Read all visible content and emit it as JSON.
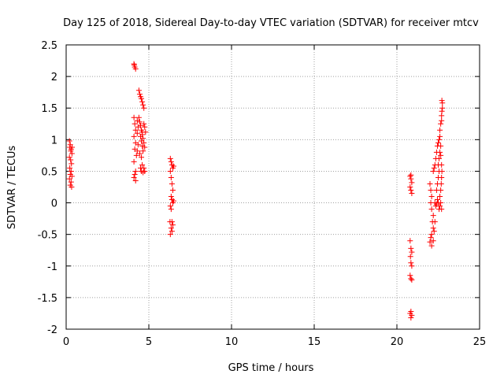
{
  "chart_data": {
    "type": "scatter",
    "title": "Day 125 of 2018, Sidereal Day-to-day VTEC variation (SDTVAR) for receiver mtcv",
    "xlabel": "GPS time / hours",
    "ylabel": "SDTVAR / TECUs",
    "xlim": [
      0,
      25
    ],
    "ylim": [
      -2,
      2.5
    ],
    "xticks": [
      0,
      5,
      10,
      15,
      20,
      25
    ],
    "xtick_labels": [
      "0",
      "5",
      "10",
      "15",
      "20",
      "25"
    ],
    "yticks": [
      -2,
      -1.5,
      -1,
      -0.5,
      0,
      0.5,
      1,
      1.5,
      2,
      2.5
    ],
    "ytick_labels": [
      "-2",
      "-1.5",
      "-1",
      "-0.5",
      "0",
      "0.5",
      "1",
      "1.5",
      "2",
      "2.5"
    ],
    "grid": true,
    "marker": "+",
    "color": "#ff0000",
    "series": [
      {
        "name": "SDTVAR",
        "points": [
          [
            0.2,
            0.98
          ],
          [
            0.25,
            0.92
          ],
          [
            0.3,
            0.85
          ],
          [
            0.35,
            0.78
          ],
          [
            0.2,
            0.72
          ],
          [
            0.28,
            0.82
          ],
          [
            0.32,
            0.62
          ],
          [
            0.22,
            0.55
          ],
          [
            0.3,
            0.5
          ],
          [
            0.25,
            0.45
          ],
          [
            0.35,
            0.42
          ],
          [
            0.2,
            0.38
          ],
          [
            0.3,
            0.33
          ],
          [
            0.25,
            0.28
          ],
          [
            0.33,
            0.25
          ],
          [
            0.22,
            0.88
          ],
          [
            0.36,
            0.88
          ],
          [
            0.27,
            0.68
          ],
          [
            4.1,
            2.2
          ],
          [
            4.15,
            2.15
          ],
          [
            4.2,
            2.12
          ],
          [
            4.12,
            2.18
          ],
          [
            4.1,
            1.35
          ],
          [
            4.15,
            1.25
          ],
          [
            4.2,
            1.15
          ],
          [
            4.1,
            1.05
          ],
          [
            4.2,
            0.95
          ],
          [
            4.15,
            0.85
          ],
          [
            4.25,
            0.75
          ],
          [
            4.1,
            0.65
          ],
          [
            4.2,
            0.5
          ],
          [
            4.15,
            0.45
          ],
          [
            4.1,
            0.4
          ],
          [
            4.2,
            0.35
          ],
          [
            4.3,
            1.3
          ],
          [
            4.35,
            1.2
          ],
          [
            4.3,
            1.1
          ],
          [
            4.35,
            0.92
          ],
          [
            4.3,
            0.82
          ],
          [
            4.4,
            1.78
          ],
          [
            4.45,
            1.72
          ],
          [
            4.5,
            1.68
          ],
          [
            4.55,
            1.65
          ],
          [
            4.6,
            1.6
          ],
          [
            4.65,
            1.55
          ],
          [
            4.7,
            1.5
          ],
          [
            4.4,
            1.35
          ],
          [
            4.45,
            1.28
          ],
          [
            4.5,
            1.22
          ],
          [
            4.55,
            1.15
          ],
          [
            4.6,
            1.08
          ],
          [
            4.65,
            1.02
          ],
          [
            4.7,
            0.95
          ],
          [
            4.75,
            0.88
          ],
          [
            4.5,
            1.05
          ],
          [
            4.55,
            0.98
          ],
          [
            4.6,
            0.9
          ],
          [
            4.65,
            0.82
          ],
          [
            4.45,
            0.78
          ],
          [
            4.55,
            0.72
          ],
          [
            4.6,
            0.6
          ],
          [
            4.7,
            0.55
          ],
          [
            4.75,
            0.5
          ],
          [
            4.5,
            0.55
          ],
          [
            4.55,
            0.5
          ],
          [
            4.65,
            0.48
          ],
          [
            4.75,
            1.2
          ],
          [
            4.7,
            1.25
          ],
          [
            4.8,
            1.12
          ],
          [
            4.6,
            1.12
          ],
          [
            6.3,
            0.7
          ],
          [
            6.35,
            0.65
          ],
          [
            6.4,
            0.6
          ],
          [
            6.45,
            0.55
          ],
          [
            6.3,
            0.5
          ],
          [
            6.35,
            0.4
          ],
          [
            6.4,
            0.3
          ],
          [
            6.45,
            0.2
          ],
          [
            6.35,
            0.1
          ],
          [
            6.4,
            0.05
          ],
          [
            6.45,
            0.0
          ],
          [
            6.3,
            -0.05
          ],
          [
            6.35,
            -0.1
          ],
          [
            6.4,
            -0.3
          ],
          [
            6.45,
            -0.35
          ],
          [
            6.35,
            -0.4
          ],
          [
            6.4,
            -0.45
          ],
          [
            6.3,
            -0.5
          ],
          [
            6.5,
            0.58
          ],
          [
            6.5,
            0.03
          ],
          [
            6.28,
            -0.3
          ],
          [
            20.8,
            0.42
          ],
          [
            20.85,
            0.38
          ],
          [
            20.9,
            0.32
          ],
          [
            20.8,
            0.25
          ],
          [
            20.85,
            0.2
          ],
          [
            20.9,
            0.15
          ],
          [
            20.85,
            0.44
          ],
          [
            20.8,
            -0.6
          ],
          [
            20.85,
            -0.72
          ],
          [
            20.9,
            -0.78
          ],
          [
            20.85,
            -0.95
          ],
          [
            20.9,
            -1.0
          ],
          [
            20.8,
            -1.15
          ],
          [
            20.85,
            -1.2
          ],
          [
            20.9,
            -1.22
          ],
          [
            20.82,
            -0.85
          ],
          [
            20.85,
            -1.72
          ],
          [
            20.9,
            -1.78
          ],
          [
            20.85,
            -1.82
          ],
          [
            20.8,
            -1.75
          ],
          [
            22.0,
            0.3
          ],
          [
            22.05,
            0.2
          ],
          [
            22.1,
            0.1
          ],
          [
            22.05,
            0.0
          ],
          [
            22.1,
            -0.1
          ],
          [
            22.2,
            -0.2
          ],
          [
            22.15,
            -0.3
          ],
          [
            22.2,
            -0.4
          ],
          [
            22.1,
            -0.5
          ],
          [
            22.05,
            -0.55
          ],
          [
            22.0,
            -0.62
          ],
          [
            22.1,
            -0.68
          ],
          [
            22.2,
            -0.6
          ],
          [
            22.25,
            -0.45
          ],
          [
            22.3,
            -0.3
          ],
          [
            22.2,
            0.5
          ],
          [
            22.25,
            0.55
          ],
          [
            22.3,
            0.6
          ],
          [
            22.35,
            0.7
          ],
          [
            22.4,
            0.8
          ],
          [
            22.45,
            0.9
          ],
          [
            22.5,
            0.95
          ],
          [
            22.55,
            1.0
          ],
          [
            22.6,
            1.05
          ],
          [
            22.3,
            0.0
          ],
          [
            22.35,
            -0.05
          ],
          [
            22.4,
            -0.02
          ],
          [
            22.45,
            0.05
          ],
          [
            22.4,
            0.2
          ],
          [
            22.45,
            0.3
          ],
          [
            22.5,
            0.4
          ],
          [
            22.55,
            0.5
          ],
          [
            22.5,
            0.6
          ],
          [
            22.55,
            0.7
          ],
          [
            22.6,
            0.8
          ],
          [
            22.65,
            0.9
          ],
          [
            22.5,
            0.0
          ],
          [
            22.55,
            -0.1
          ],
          [
            22.6,
            -0.05
          ],
          [
            22.65,
            0.0
          ],
          [
            22.6,
            1.15
          ],
          [
            22.65,
            1.25
          ],
          [
            22.7,
            1.3
          ],
          [
            22.7,
            1.38
          ],
          [
            22.72,
            1.45
          ],
          [
            22.75,
            1.5
          ],
          [
            22.75,
            1.58
          ],
          [
            22.72,
            1.62
          ],
          [
            22.7,
            0.4
          ],
          [
            22.72,
            0.5
          ],
          [
            22.7,
            0.6
          ],
          [
            22.68,
            0.3
          ],
          [
            22.65,
            0.2
          ],
          [
            22.6,
            0.1
          ],
          [
            22.7,
            -0.1
          ],
          [
            22.65,
            0.75
          ]
        ]
      }
    ]
  }
}
